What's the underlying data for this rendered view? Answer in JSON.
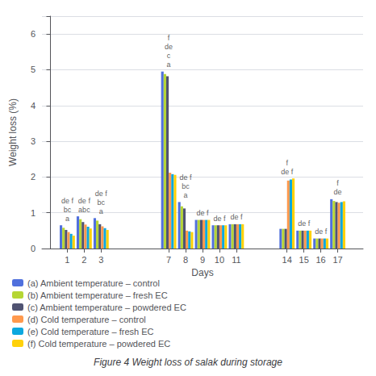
{
  "chart_data": {
    "type": "bar",
    "title": "Figure 4 Weight loss of salak during storage",
    "xlabel": "Days",
    "ylabel": "Weight loss (%)",
    "x": [
      1,
      2,
      3,
      7,
      8,
      9,
      10,
      11,
      14,
      15,
      16,
      17
    ],
    "xlim": [
      -0.5,
      18.5
    ],
    "xticks": [
      1,
      2,
      3,
      7,
      8,
      9,
      10,
      11,
      14,
      15,
      16,
      17
    ],
    "ylim": [
      0,
      6.5
    ],
    "yticks": [
      0,
      1,
      2,
      3,
      4,
      5,
      6
    ],
    "grid": true,
    "legend": "bottom",
    "series": [
      {
        "name": "(a) Ambient temperature – control",
        "values": [
          0.65,
          0.9,
          0.85,
          4.95,
          1.3,
          0.8,
          0.65,
          0.68,
          0.55,
          0.5,
          0.28,
          1.38
        ]
      },
      {
        "name": "(b) Ambient temperature – fresh EC",
        "values": [
          0.58,
          0.82,
          0.78,
          4.88,
          1.18,
          0.8,
          0.65,
          0.68,
          0.55,
          0.5,
          0.28,
          1.33
        ]
      },
      {
        "name": "(c) Ambient temperature – powdered EC",
        "values": [
          0.52,
          0.74,
          0.68,
          4.82,
          1.12,
          0.8,
          0.65,
          0.68,
          0.55,
          0.5,
          0.28,
          1.3
        ]
      },
      {
        "name": "(d) Cold temperature – control",
        "values": [
          0.46,
          0.67,
          0.62,
          2.12,
          0.5,
          0.8,
          0.65,
          0.68,
          1.9,
          0.5,
          0.28,
          1.28
        ]
      },
      {
        "name": "(e) Cold temperature – fresh EC",
        "values": [
          0.41,
          0.61,
          0.57,
          2.08,
          0.48,
          0.8,
          0.65,
          0.68,
          1.93,
          0.5,
          0.28,
          1.3
        ]
      },
      {
        "name": "(f) Cold temperature – powdered EC",
        "values": [
          0.36,
          0.56,
          0.52,
          2.06,
          0.46,
          0.8,
          0.65,
          0.68,
          1.96,
          0.5,
          0.28,
          1.32
        ]
      }
    ],
    "annotations": [
      {
        "x": 1,
        "text": "a"
      },
      {
        "x": 1,
        "text": "bc"
      },
      {
        "x": 1,
        "text": "de f"
      },
      {
        "x": 2,
        "text": "abc"
      },
      {
        "x": 2,
        "text": "de f"
      },
      {
        "x": 3,
        "text": "a"
      },
      {
        "x": 3,
        "text": "bc"
      },
      {
        "x": 3,
        "text": "de f"
      },
      {
        "x": 7,
        "text": "a"
      },
      {
        "x": 7,
        "text": "c"
      },
      {
        "x": 7,
        "text": "de"
      },
      {
        "x": 7,
        "text": "f"
      },
      {
        "x": 8,
        "text": "a"
      },
      {
        "x": 8,
        "text": "bc"
      },
      {
        "x": 8,
        "text": "de f"
      },
      {
        "x": 9,
        "text": "de f"
      },
      {
        "x": 10,
        "text": "de f"
      },
      {
        "x": 11,
        "text": "de f"
      },
      {
        "x": 14,
        "text": "de f"
      },
      {
        "x": 14,
        "text": "f"
      },
      {
        "x": 15,
        "text": "de f"
      },
      {
        "x": 16,
        "text": "de f"
      },
      {
        "x": 17,
        "text": "de"
      },
      {
        "x": 17,
        "text": "f"
      }
    ]
  }
}
